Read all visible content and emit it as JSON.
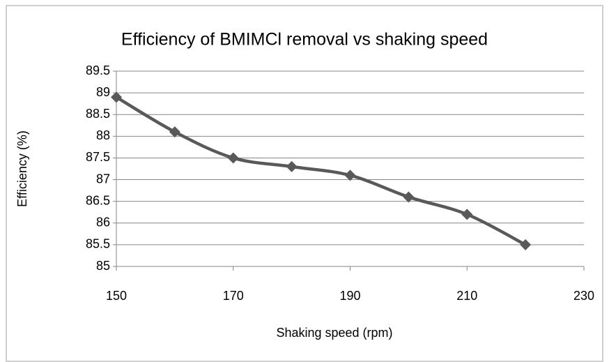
{
  "chart_data": {
    "type": "line",
    "title": "Efficiency of BMIMCl removal vs shaking speed",
    "x_label": "Shaking speed (rpm)",
    "y_label": "Efficiency (%)",
    "x": [
      150,
      160,
      170,
      180,
      190,
      200,
      210,
      220
    ],
    "series": [
      {
        "name": "Efficiency",
        "color": "#595959",
        "values": [
          88.9,
          88.1,
          87.5,
          87.3,
          87.1,
          86.6,
          86.2,
          85.5
        ]
      }
    ],
    "xlim": [
      150,
      230
    ],
    "xticks": [
      150,
      170,
      190,
      210,
      230
    ],
    "ylim": [
      85,
      89.5
    ],
    "yticks": [
      85,
      85.5,
      86,
      86.5,
      87,
      87.5,
      88,
      88.5,
      89,
      89.5
    ],
    "grid": true,
    "smooth": true,
    "marker": "diamond"
  }
}
